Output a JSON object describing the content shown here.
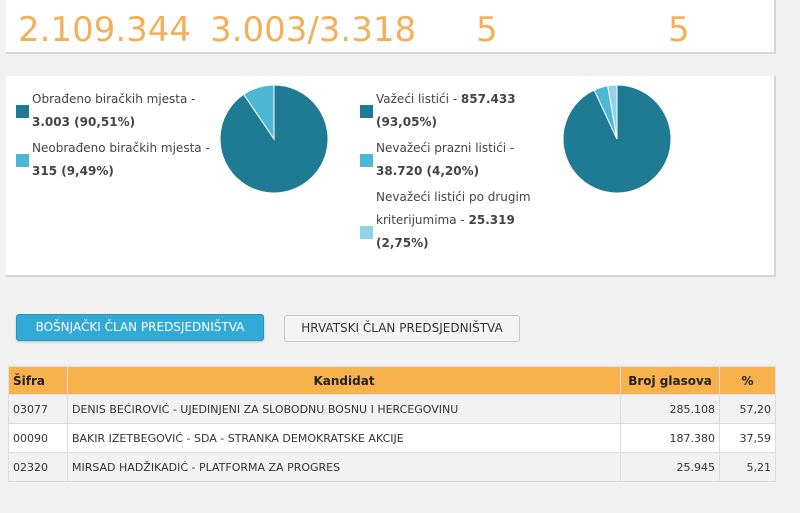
{
  "stats": {
    "voters": "2.109.344",
    "stations": "3.003/3.318",
    "value3": "5",
    "value4": "5"
  },
  "stations_chart": {
    "legend": [
      {
        "text": "Obrađeno biračkih mjesta -",
        "value": "3.003 (90,51%)",
        "color": "#1f7b93"
      },
      {
        "text": "Neobrađeno biračkih mjesta -",
        "value": "315 (9,49%)",
        "color": "#4db8d6"
      }
    ]
  },
  "ballots_chart": {
    "legend": [
      {
        "text": "Važeći listići - ",
        "value": "857.433",
        "value2": "(93,05%)",
        "color": "#1f7b93"
      },
      {
        "text": "Nevažeći prazni listići -",
        "value": "38.720 (4,20%)",
        "color": "#4db8d6"
      },
      {
        "text": "Nevažeći listići po drugim",
        "text2": "kriterijumima - ",
        "value": "25.319",
        "value2": "(2,75%)",
        "color": "#8ed3e6"
      }
    ]
  },
  "chart_data": [
    {
      "type": "pie",
      "categories": [
        "Obrađeno biračkih mjesta",
        "Neobrađeno biračkih mjesta"
      ],
      "values": [
        90.51,
        9.49
      ],
      "colors": [
        "#1f7b93",
        "#4db8d6"
      ]
    },
    {
      "type": "pie",
      "categories": [
        "Važeći listići",
        "Nevažeći prazni listići",
        "Nevažeći listići po drugim kriterijumima"
      ],
      "values": [
        93.05,
        4.2,
        2.75
      ],
      "colors": [
        "#1f7b93",
        "#4db8d6",
        "#8ed3e6"
      ]
    }
  ],
  "tabs": {
    "active": "BOŠNJAČKI ČLAN PREDSJEDNIŠTVA",
    "inactive": "HRVATSKI ČLAN PREDSJEDNIŠTVA"
  },
  "table": {
    "headers": [
      "Šifra",
      "Kandidat",
      "Broj glasova",
      "%"
    ],
    "rows": [
      {
        "code": "03077",
        "candidate": "DENIS BEĆIROVIĆ - UJEDINJENI ZA SLOBODNU BOSNU I HERCEGOVINU",
        "votes": "285.108",
        "pct": "57,20"
      },
      {
        "code": "00090",
        "candidate": "BAKIR IZETBEGOVIĆ - SDA - STRANKA DEMOKRATSKE AKCIJE",
        "votes": "187.380",
        "pct": "37,59"
      },
      {
        "code": "02320",
        "candidate": "MIRSAD HADŽIKADIĆ - PLATFORMA ZA PROGRES",
        "votes": "25.945",
        "pct": "5,21"
      }
    ]
  }
}
